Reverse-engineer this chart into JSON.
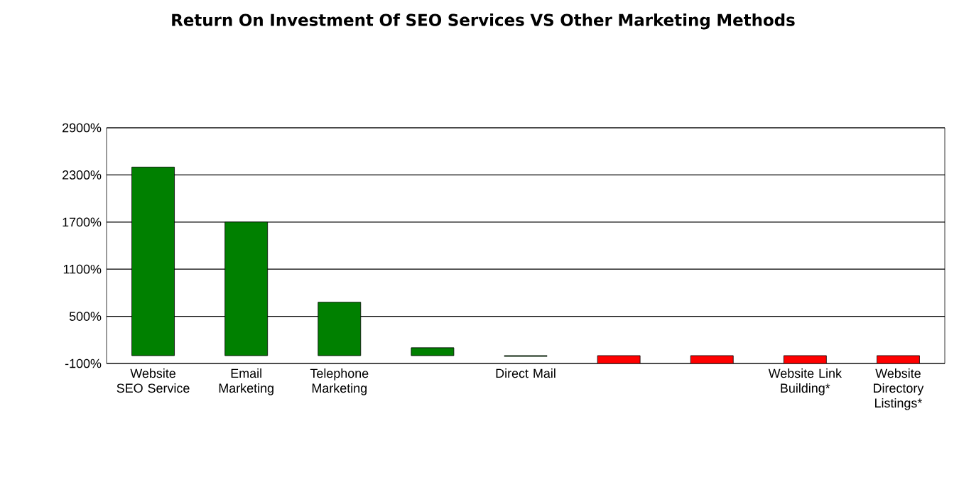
{
  "chart_data": {
    "type": "bar",
    "title": "Return On Investment Of SEO Services VS Other Marketing Methods",
    "categories": [
      "Website SEO Service",
      "Email Marketing",
      "Telephone Marketing",
      null,
      "Direct Mail",
      null,
      null,
      "Website Link Building*",
      "Website Directory Listings*"
    ],
    "values": [
      2400,
      1700,
      680,
      100,
      -10,
      -100,
      -100,
      -100,
      -100
    ],
    "colors": [
      "#008000",
      "#008000",
      "#008000",
      "#008000",
      "#008000",
      "#ff0000",
      "#ff0000",
      "#ff0000",
      "#ff0000"
    ],
    "ylim": [
      -100,
      2900
    ],
    "yticks": [
      {
        "value": -100,
        "label": "-100%"
      },
      {
        "value": 500,
        "label": "500%"
      },
      {
        "value": 1100,
        "label": "1100%"
      },
      {
        "value": 1700,
        "label": "1700%"
      },
      {
        "value": 2300,
        "label": "2300%"
      },
      {
        "value": 2900,
        "label": "2900%"
      }
    ],
    "grid": "y"
  }
}
